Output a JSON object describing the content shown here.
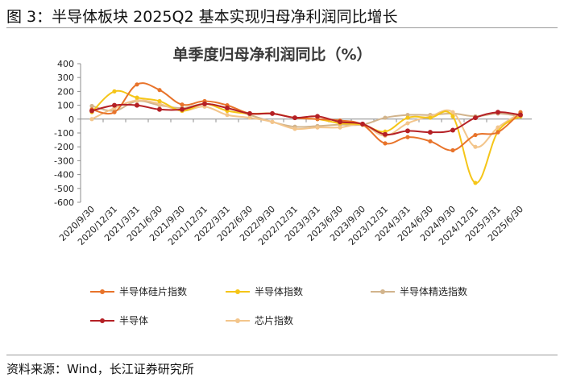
{
  "figure": {
    "title": "图 3：半导体板块 2025Q2 基本实现归母净利润同比增长",
    "source": "资料来源：Wind，长江证券研究所"
  },
  "chart_data": {
    "type": "line",
    "title": "单季度归母净利润同比（%）",
    "xlabel": "",
    "ylabel": "",
    "ylim": [
      -600,
      400
    ],
    "yticks": [
      400,
      300,
      200,
      100,
      0,
      -100,
      -200,
      -300,
      -400,
      -500,
      -600
    ],
    "grid": false,
    "legend_position": "bottom",
    "categories": [
      "2020/9/30",
      "2020/12/31",
      "2021/3/31",
      "2021/6/30",
      "2021/9/30",
      "2021/12/31",
      "2022/3/31",
      "2022/6/30",
      "2022/9/30",
      "2022/12/31",
      "2023/3/31",
      "2023/6/30",
      "2023/9/30",
      "2023/12/31",
      "2024/3/31",
      "2024/6/30",
      "2024/9/30",
      "2024/12/31",
      "2025/3/31",
      "2025/6/30"
    ],
    "series": [
      {
        "name": "半导体硅片指数",
        "color": "#E8732A",
        "values": [
          70,
          50,
          250,
          210,
          105,
          130,
          100,
          40,
          40,
          10,
          0,
          -10,
          -40,
          -175,
          -130,
          -160,
          -225,
          -115,
          -95,
          50
        ]
      },
      {
        "name": "半导体指数",
        "color": "#F5C518",
        "values": [
          50,
          200,
          155,
          130,
          60,
          110,
          60,
          40,
          40,
          10,
          0,
          -30,
          -40,
          -90,
          10,
          10,
          20,
          -460,
          -90,
          20
        ]
      },
      {
        "name": "半导体精选指数",
        "color": "#D2B48C",
        "values": [
          95,
          60,
          130,
          100,
          80,
          110,
          80,
          30,
          -20,
          -55,
          -50,
          -40,
          -40,
          10,
          30,
          30,
          40,
          20,
          40,
          20
        ]
      },
      {
        "name": "半导体",
        "color": "#B52025",
        "values": [
          60,
          100,
          100,
          70,
          70,
          110,
          80,
          40,
          40,
          10,
          20,
          -20,
          -35,
          -110,
          -85,
          -95,
          -80,
          10,
          50,
          30
        ]
      },
      {
        "name": "芯片指数",
        "color": "#F3C58B",
        "values": [
          0,
          80,
          135,
          110,
          60,
          90,
          30,
          10,
          -20,
          -70,
          -60,
          -60,
          -40,
          -120,
          -30,
          20,
          50,
          -200,
          -60,
          45
        ]
      }
    ]
  }
}
